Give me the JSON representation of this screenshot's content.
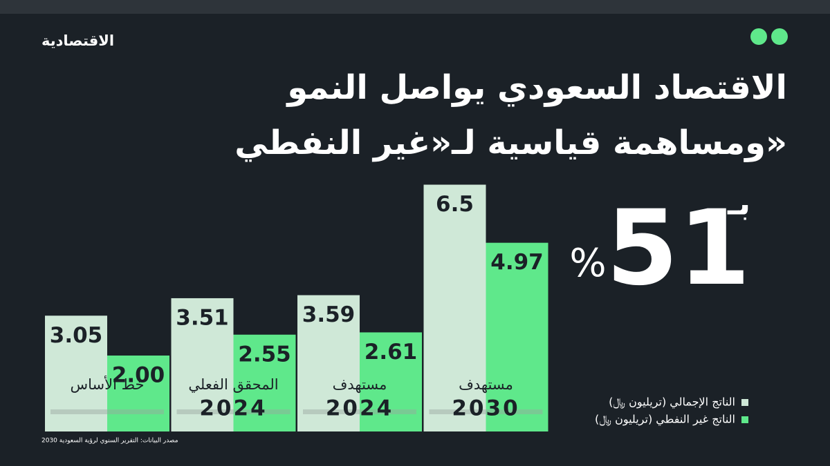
{
  "logo": "الاقتصادية",
  "chart_data": {
    "type": "bar",
    "title": [
      "الاقتصاد السعودي يواصل النمو",
      "ومساهمة قياسية لـ«غير النفطي»"
    ],
    "highlight": {
      "prefix": "بـ",
      "value": 51,
      "unit": "%"
    },
    "categories": [
      "خط الأساس",
      "المحقق الفعلي",
      "مستهدف",
      "مستهدف"
    ],
    "category_years": [
      null,
      "2024",
      "2024",
      "2030"
    ],
    "series": [
      {
        "name": "الناتج الإجمالي (تريليون ﷼)",
        "color": "#cfe8d7",
        "values": [
          3.05,
          3.51,
          3.59,
          6.5
        ],
        "value_labels": [
          "3.05",
          "3.51",
          "3.59",
          "6.5"
        ]
      },
      {
        "name": "الناتج غير النفطي (تريليون ﷼)",
        "color": "#5fe88b",
        "values": [
          2,
          2.55,
          2.61,
          4.97
        ],
        "value_labels": [
          "2.00",
          "2.55",
          "2.61",
          "4.97"
        ]
      }
    ],
    "source": "مصدر البيانات: التقرير السنوي لرؤية السعودية 2030"
  }
}
